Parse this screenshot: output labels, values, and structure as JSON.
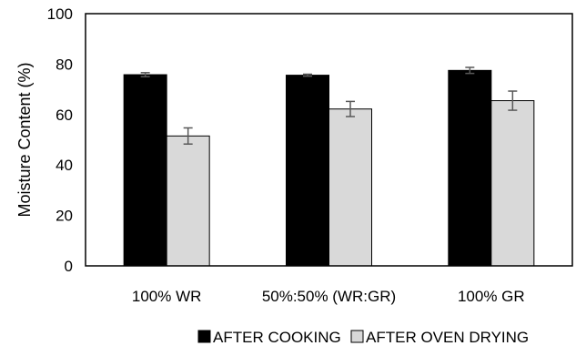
{
  "chart_data": {
    "type": "bar",
    "title": "",
    "xlabel": "",
    "ylabel": "Moisture Content (%)",
    "ylim": [
      0,
      100
    ],
    "yticks": [
      0,
      20,
      40,
      60,
      80,
      100
    ],
    "grid": false,
    "legend_position": "bottom",
    "categories": [
      "100% WR",
      "50%:50% (WR:GR)",
      "100% GR"
    ],
    "series": [
      {
        "name": "AFTER COOKING",
        "color": "#000000",
        "values": [
          75.8,
          75.6,
          77.5
        ],
        "errors": [
          0.8,
          0.4,
          1.2
        ]
      },
      {
        "name": "AFTER OVEN DRYING",
        "color": "#d9d9d9",
        "values": [
          51.5,
          62.2,
          65.5
        ],
        "errors": [
          3.2,
          3.0,
          3.8
        ]
      }
    ]
  }
}
